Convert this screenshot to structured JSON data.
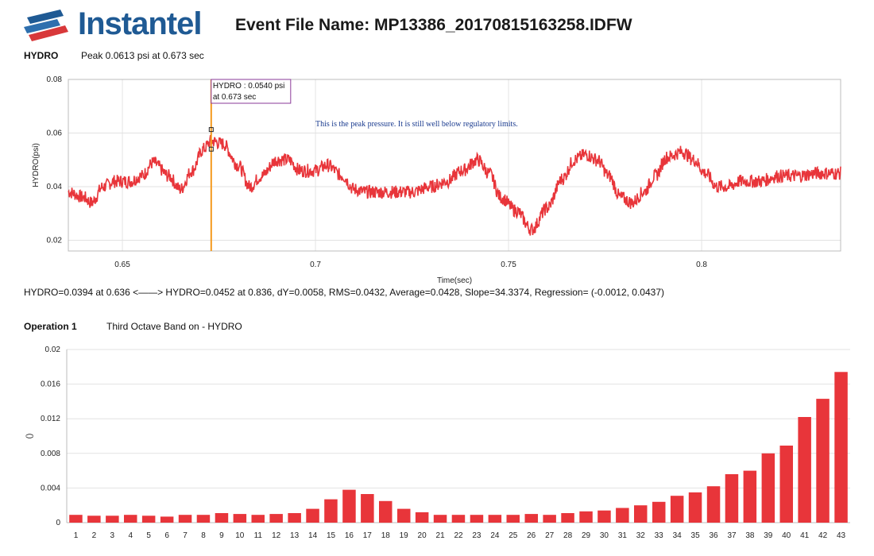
{
  "header": {
    "brand": "Instantel",
    "event_title": "Event File Name: MP13386_20170815163258.IDFW"
  },
  "waveform": {
    "channel": "HYDRO",
    "peak_text": "Peak 0.0613 psi  at 0.673 sec",
    "stats_text": "HYDRO=0.0394 at 0.636 <——> HYDRO=0.0452 at 0.836, dY=0.0058, RMS=0.0432, Average=0.0428, Slope=34.3374, Regression= (-0.0012, 0.0437)"
  },
  "bands_section": {
    "operation": "Operation 1",
    "subtitle": "Third Octave Band on - HYDRO"
  },
  "colors": {
    "series": "#e8353a",
    "cursor": "#f59a1e",
    "grid": "#e2e2e2",
    "tooltip_border": "#8a3a9a",
    "brand": "#1f5a94"
  },
  "chart_data": [
    {
      "type": "line",
      "title": "HYDRO",
      "xlabel": "Time(sec)",
      "ylabel": "HYDRO(psi)",
      "xlim": [
        0.636,
        0.836
      ],
      "ylim": [
        0.016,
        0.08
      ],
      "x_ticks": [
        0.65,
        0.7,
        0.75,
        0.8
      ],
      "x_tick_labels": [
        "0.65",
        "0.7",
        "0.75",
        "0.8"
      ],
      "y_ticks": [
        0.02,
        0.04,
        0.06,
        0.08
      ],
      "y_tick_labels": [
        "0.02",
        "0.04",
        "0.06",
        "0.08"
      ],
      "x": [
        0.636,
        0.64,
        0.642,
        0.645,
        0.648,
        0.652,
        0.655,
        0.658,
        0.662,
        0.665,
        0.668,
        0.671,
        0.673,
        0.676,
        0.68,
        0.683,
        0.686,
        0.69,
        0.693,
        0.696,
        0.7,
        0.703,
        0.707,
        0.71,
        0.713,
        0.717,
        0.72,
        0.725,
        0.73,
        0.734,
        0.738,
        0.742,
        0.745,
        0.748,
        0.752,
        0.756,
        0.76,
        0.764,
        0.767,
        0.77,
        0.773,
        0.776,
        0.779,
        0.782,
        0.785,
        0.788,
        0.791,
        0.795,
        0.798,
        0.801,
        0.804,
        0.807,
        0.81,
        0.815,
        0.82,
        0.825,
        0.83,
        0.836
      ],
      "values": [
        0.038,
        0.036,
        0.034,
        0.04,
        0.042,
        0.042,
        0.044,
        0.049,
        0.044,
        0.039,
        0.046,
        0.054,
        0.057,
        0.056,
        0.048,
        0.04,
        0.044,
        0.05,
        0.05,
        0.046,
        0.046,
        0.048,
        0.044,
        0.039,
        0.038,
        0.038,
        0.038,
        0.038,
        0.04,
        0.042,
        0.046,
        0.05,
        0.045,
        0.036,
        0.031,
        0.024,
        0.032,
        0.043,
        0.05,
        0.052,
        0.05,
        0.044,
        0.036,
        0.034,
        0.038,
        0.044,
        0.051,
        0.053,
        0.05,
        0.045,
        0.04,
        0.04,
        0.042,
        0.042,
        0.044,
        0.044,
        0.045,
        0.045
      ],
      "noise_amplitude": 0.0025,
      "cursor_x": 0.673,
      "tooltip": {
        "line1": "HYDRO : 0.0540 psi",
        "line2": "at 0.673 sec"
      },
      "markers": [
        {
          "x": 0.673,
          "y": 0.0613
        },
        {
          "x": 0.673,
          "y": 0.054
        }
      ],
      "annotation": "This is the peak pressure. It is still well below regulatory limits.",
      "annotation_anchor": {
        "x": 0.7,
        "y": 0.0625
      }
    },
    {
      "type": "bar",
      "title": "Third Octave Band on - HYDRO",
      "xlabel": "",
      "ylabel": "()",
      "ylim": [
        0,
        0.02
      ],
      "y_ticks": [
        0,
        0.004,
        0.008,
        0.012,
        0.016,
        0.02
      ],
      "y_tick_labels": [
        "0",
        "0.004",
        "0.008",
        "0.012",
        "0.016",
        "0.02"
      ],
      "categories": [
        "1",
        "2",
        "3",
        "4",
        "5",
        "6",
        "7",
        "8",
        "9",
        "10",
        "11",
        "12",
        "13",
        "14",
        "15",
        "16",
        "17",
        "18",
        "19",
        "20",
        "21",
        "22",
        "23",
        "24",
        "25",
        "26",
        "27",
        "28",
        "29",
        "30",
        "31",
        "32",
        "33",
        "34",
        "35",
        "36",
        "37",
        "38",
        "39",
        "40",
        "41",
        "42",
        "43"
      ],
      "values": [
        0.0009,
        0.0008,
        0.0008,
        0.0009,
        0.0008,
        0.0007,
        0.0009,
        0.0009,
        0.0011,
        0.001,
        0.0009,
        0.001,
        0.0011,
        0.0016,
        0.0027,
        0.0038,
        0.0033,
        0.0025,
        0.0016,
        0.0012,
        0.0009,
        0.0009,
        0.0009,
        0.0009,
        0.0009,
        0.001,
        0.0009,
        0.0011,
        0.0013,
        0.0014,
        0.0017,
        0.002,
        0.0024,
        0.0031,
        0.0035,
        0.0042,
        0.0056,
        0.006,
        0.008,
        0.0089,
        0.0122,
        0.0143,
        0.0174
      ]
    }
  ]
}
